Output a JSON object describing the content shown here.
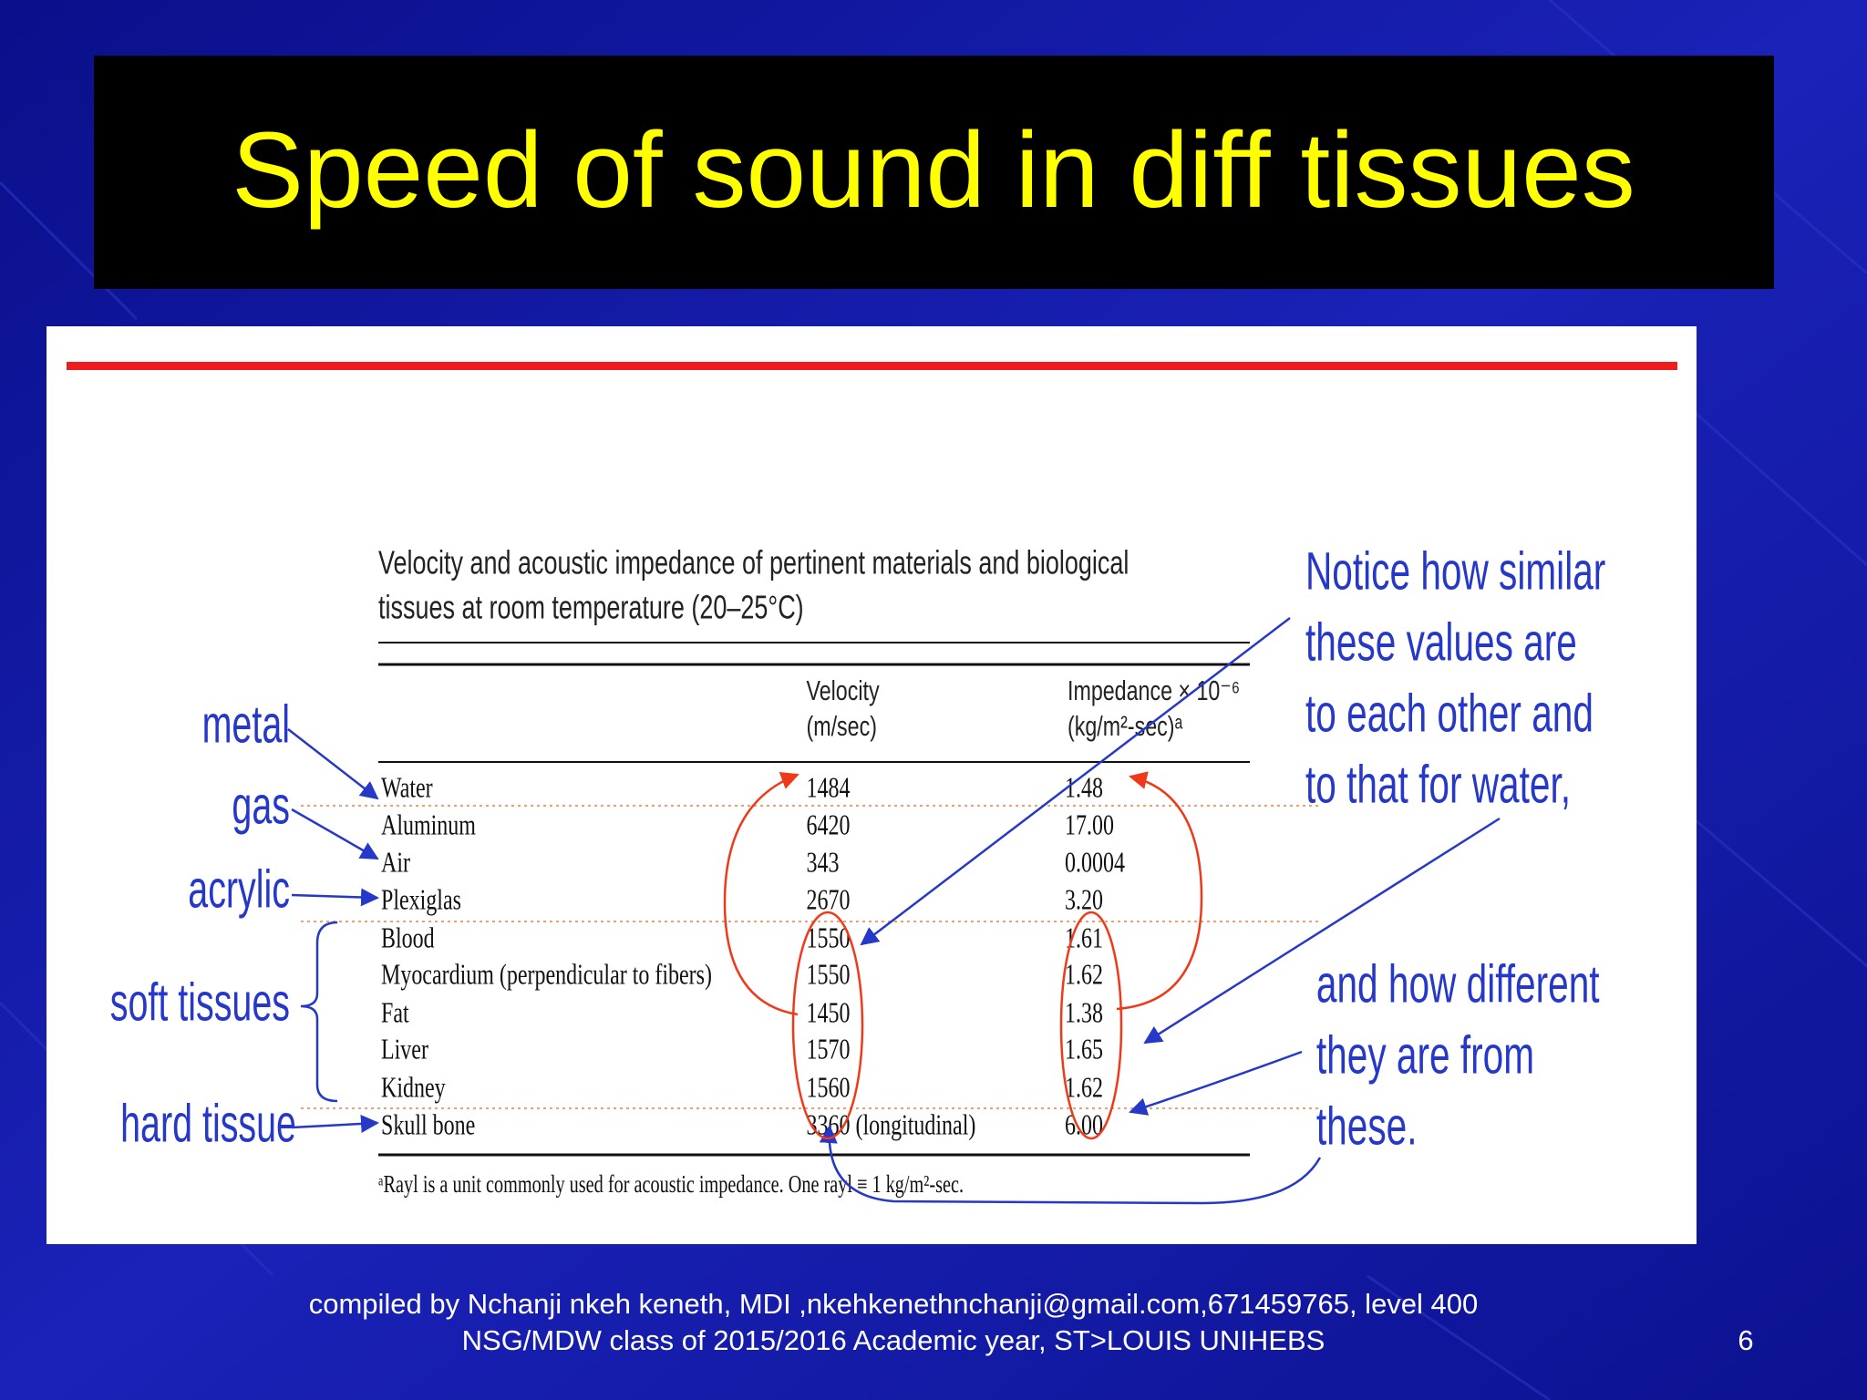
{
  "title": "Speed of sound in diff tissues",
  "table": {
    "caption": [
      "Velocity and acoustic impedance of pertinent materials and biological",
      "tissues at room temperature (20–25°C)"
    ],
    "header": [
      [
        "Velocity",
        "(m/sec)"
      ],
      [
        "Impedance × 10⁻⁶",
        "(kg/m²-sec)ᵃ"
      ]
    ],
    "rows": [
      [
        "Water",
        "1484",
        "1.48"
      ],
      [
        "Aluminum",
        "6420",
        "17.00"
      ],
      [
        "Air",
        "343",
        "0.0004"
      ],
      [
        "Plexiglas",
        "2670",
        "3.20"
      ],
      [
        "Blood",
        "1550",
        "1.61"
      ],
      [
        "Myocardium (perpendicular to fibers)",
        "1550",
        "1.62"
      ],
      [
        "Fat",
        "1450",
        "1.38"
      ],
      [
        "Liver",
        "1570",
        "1.65"
      ],
      [
        "Kidney",
        "1560",
        "1.62"
      ],
      [
        "Skull bone",
        "3360 (longitudinal)",
        "6.00"
      ]
    ],
    "footnote": "ᵃRayl is a unit commonly used for acoustic impedance. One rayl ≡ 1 kg/m²-sec."
  },
  "labels": [
    "metal",
    "gas",
    "acrylic",
    "soft tissues",
    "hard tissue"
  ],
  "notes": [
    "Notice how similar",
    "these values are",
    "to each other and",
    "to that for water,"
  ],
  "notes2": [
    "and how different",
    "they are from",
    "these."
  ],
  "footer": [
    "compiled by Nchanji nkeh keneth, MDI ,nkehkenethnchanji@gmail.com,671459765, level 400",
    "NSG/MDW class of 2015/2016 Academic year, ST>LOUIS UNIHEBS"
  ],
  "page_number": "6"
}
